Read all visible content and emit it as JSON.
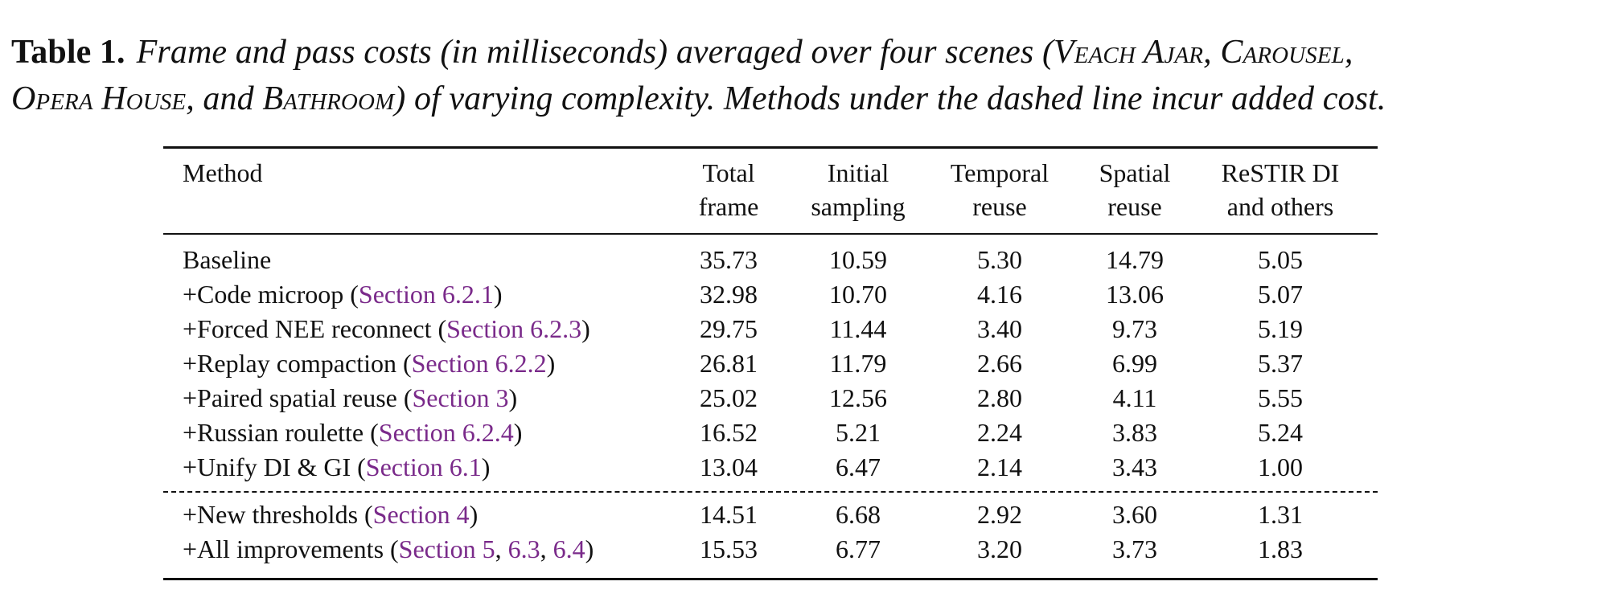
{
  "caption": {
    "label": "Table 1.",
    "text_before": "Frame and pass costs (in milliseconds) averaged over four scenes (",
    "scenes": [
      "Veach Ajar",
      "Carousel",
      "Opera House",
      "Bathroom"
    ],
    "sep1": ", ",
    "sep2": ", ",
    "sep3": ", and ",
    "text_after": ") of varying complexity. Methods under the dashed line incur added cost."
  },
  "table": {
    "headers": {
      "method": "Method",
      "total": [
        "Total",
        "frame"
      ],
      "initial": [
        "Initial",
        "sampling"
      ],
      "temporal": [
        "Temporal",
        "reuse"
      ],
      "spatial": [
        "Spatial",
        "reuse"
      ],
      "restir": [
        "ReSTIR DI",
        "and others"
      ]
    },
    "rows": [
      {
        "pre": "Baseline",
        "refs": [],
        "post": "",
        "values": [
          "35.73",
          "10.59",
          "5.30",
          "14.79",
          "5.05"
        ]
      },
      {
        "pre": "+Code microop (",
        "refs": [
          "Section 6.2.1"
        ],
        "post": ")",
        "values": [
          "32.98",
          "10.70",
          "4.16",
          "13.06",
          "5.07"
        ]
      },
      {
        "pre": "+Forced NEE reconnect (",
        "refs": [
          "Section 6.2.3"
        ],
        "post": ")",
        "values": [
          "29.75",
          "11.44",
          "3.40",
          "9.73",
          "5.19"
        ]
      },
      {
        "pre": "+Replay compaction (",
        "refs": [
          "Section 6.2.2"
        ],
        "post": ")",
        "values": [
          "26.81",
          "11.79",
          "2.66",
          "6.99",
          "5.37"
        ]
      },
      {
        "pre": "+Paired spatial reuse (",
        "refs": [
          "Section 3"
        ],
        "post": ")",
        "values": [
          "25.02",
          "12.56",
          "2.80",
          "4.11",
          "5.55"
        ]
      },
      {
        "pre": "+Russian roulette (",
        "refs": [
          "Section 6.2.4"
        ],
        "post": ")",
        "values": [
          "16.52",
          "5.21",
          "2.24",
          "3.83",
          "5.24"
        ]
      },
      {
        "pre": "+Unify DI & GI (",
        "refs": [
          "Section 6.1"
        ],
        "post": ")",
        "values": [
          "13.04",
          "6.47",
          "2.14",
          "3.43",
          "1.00"
        ]
      },
      {
        "pre": "+New thresholds (",
        "refs": [
          "Section 4"
        ],
        "post": ")",
        "values": [
          "14.51",
          "6.68",
          "2.92",
          "3.60",
          "1.31"
        ]
      },
      {
        "pre": "+All improvements (",
        "refs": [
          "Section 5",
          "6.3",
          "6.4"
        ],
        "post": ")",
        "values": [
          "15.53",
          "6.77",
          "3.20",
          "3.73",
          "1.83"
        ]
      }
    ]
  }
}
